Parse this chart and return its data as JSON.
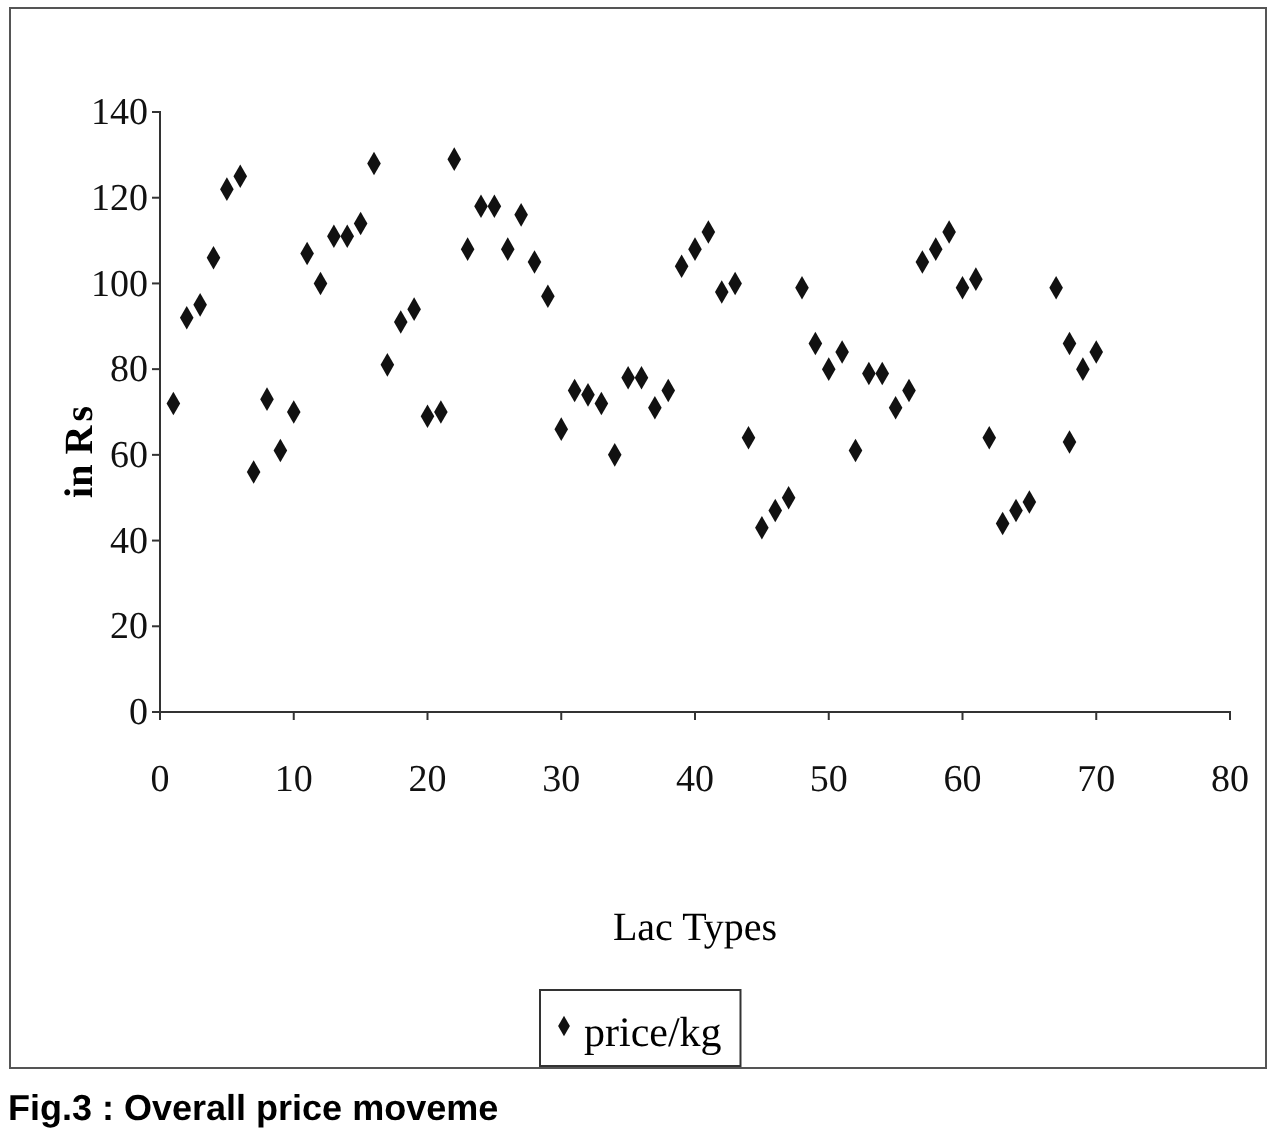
{
  "chart_data": {
    "type": "scatter",
    "xlabel": "Lac Types",
    "ylabel": "in ₨",
    "x": [
      1,
      2,
      3,
      4,
      5,
      6,
      7,
      8,
      9,
      10,
      11,
      12,
      13,
      14,
      15,
      16,
      17,
      18,
      19,
      20,
      21,
      22,
      23,
      24,
      25,
      26,
      27,
      28,
      29,
      30,
      31,
      32,
      33,
      34,
      35,
      36,
      37,
      38,
      39,
      40,
      41,
      42,
      43,
      44,
      45,
      46,
      47,
      48,
      49,
      50,
      51,
      52,
      53,
      54,
      55,
      56,
      57,
      58,
      59,
      60,
      61,
      62,
      63,
      64,
      65,
      67,
      68,
      68,
      69,
      70
    ],
    "series": [
      {
        "name": "price/kg",
        "color": "#111111",
        "values": [
          72,
          92,
          95,
          106,
          122,
          125,
          56,
          73,
          61,
          70,
          107,
          100,
          111,
          111,
          114,
          128,
          81,
          91,
          94,
          69,
          70,
          129,
          108,
          118,
          118,
          108,
          116,
          105,
          97,
          66,
          75,
          74,
          72,
          60,
          78,
          78,
          71,
          75,
          104,
          108,
          112,
          98,
          100,
          64,
          43,
          47,
          50,
          99,
          86,
          80,
          84,
          61,
          79,
          79,
          71,
          75,
          105,
          108,
          112,
          99,
          101,
          64,
          44,
          47,
          49,
          99,
          86,
          63,
          80,
          84
        ]
      }
    ],
    "xlim": [
      0,
      80
    ],
    "xticks": [
      0,
      10,
      20,
      30,
      40,
      50,
      60,
      70,
      80
    ],
    "ylim": [
      0,
      140
    ],
    "yticks": [
      0,
      20,
      40,
      60,
      80,
      100,
      120,
      140
    ],
    "grid": false,
    "legend": "bottom",
    "marker": "diamond",
    "annotations": [
      "Fig.3 : Overall price moveme"
    ]
  }
}
